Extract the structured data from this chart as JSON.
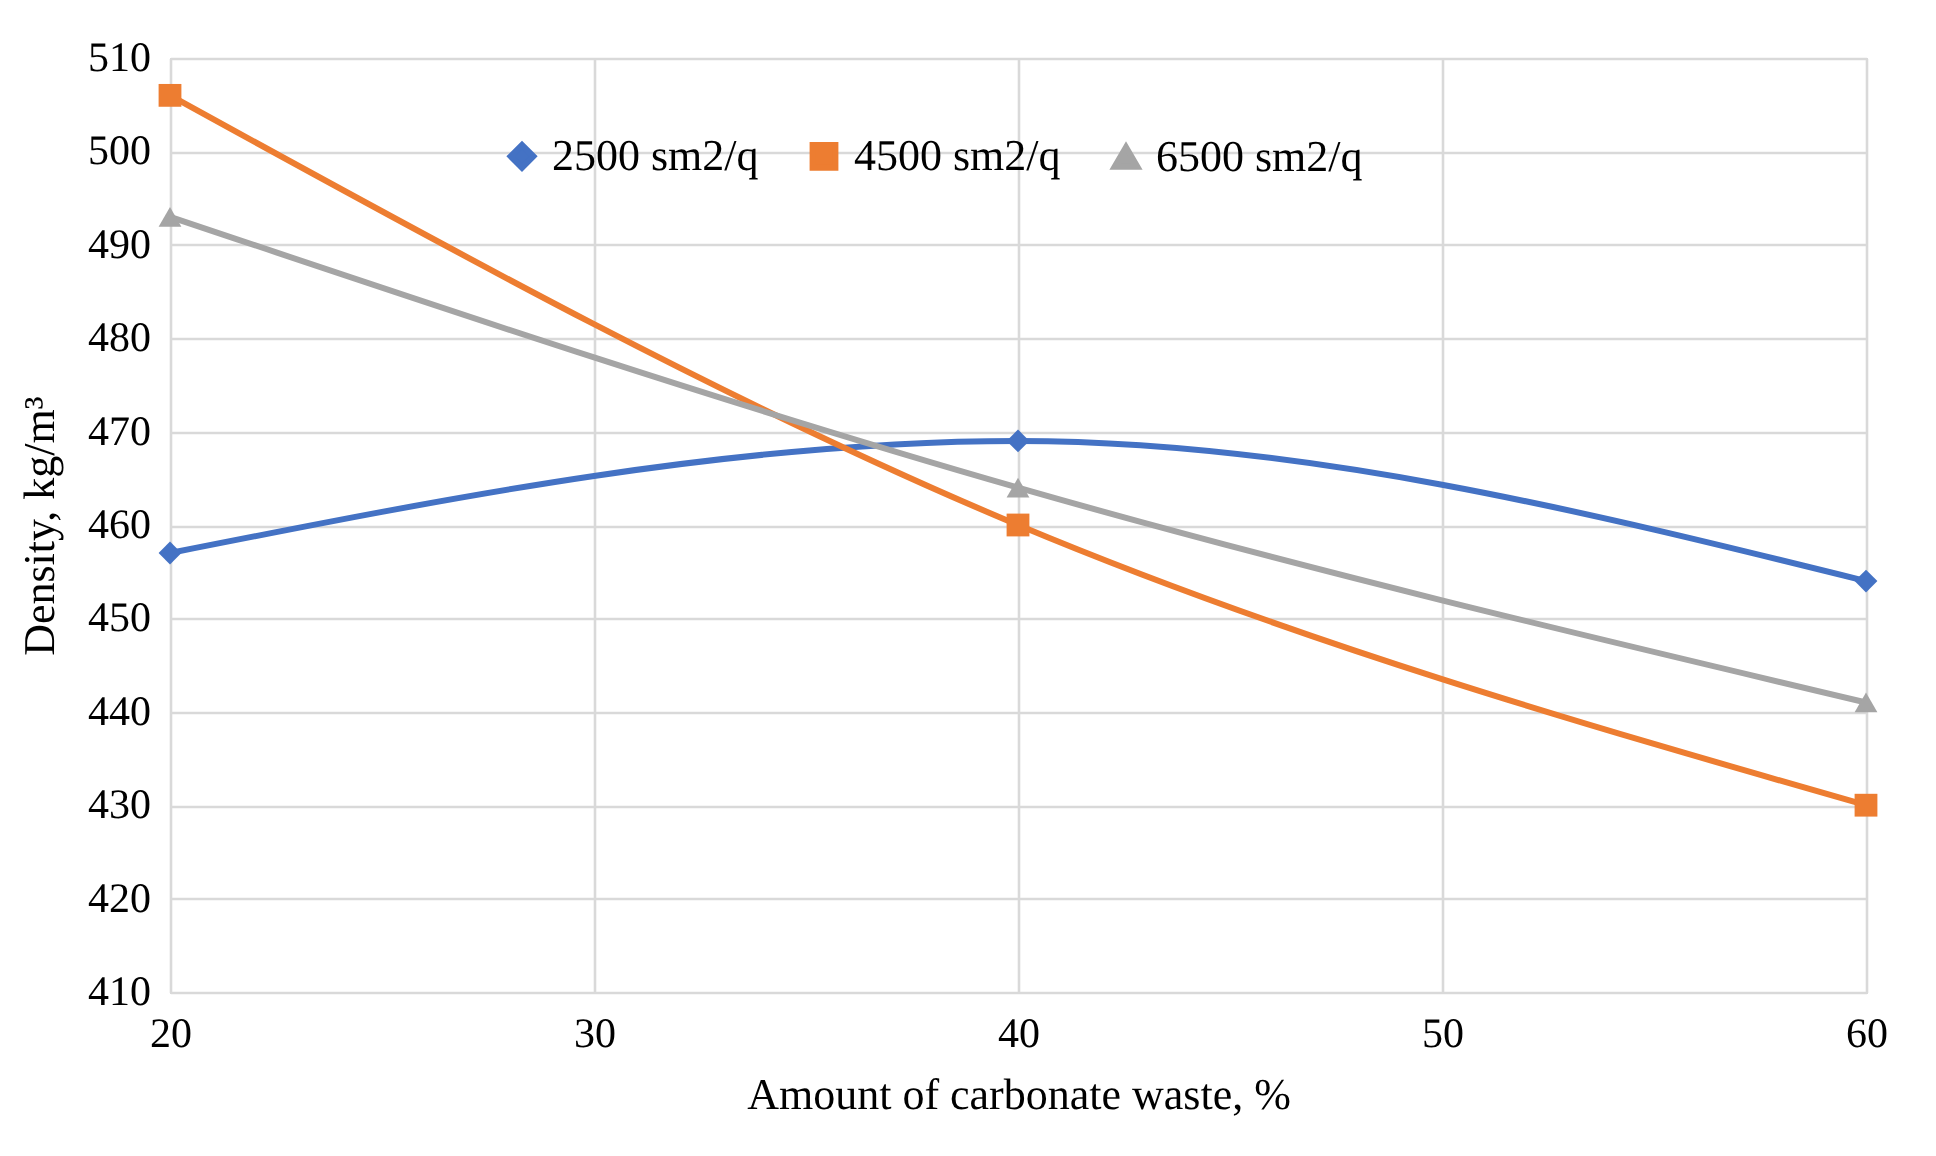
{
  "chart_data": {
    "type": "line",
    "xlabel": "Amount of carbonate waste, %",
    "ylabel": "Density, kg/m³",
    "x": [
      20,
      40,
      60
    ],
    "series": [
      {
        "name": "2500 sm2/q",
        "color": "#4472c4",
        "marker": "diamond",
        "values": [
          457,
          469,
          454
        ]
      },
      {
        "name": "4500 sm2/q",
        "color": "#ed7d31",
        "marker": "square",
        "values": [
          506,
          460,
          430
        ]
      },
      {
        "name": "6500 sm2/q",
        "color": "#a5a5a5",
        "marker": "triangle",
        "values": [
          493,
          464,
          441
        ]
      }
    ],
    "xlim": [
      20,
      60
    ],
    "xticks": [
      20,
      30,
      40,
      50,
      60
    ],
    "ylim": [
      410,
      510
    ],
    "yticks": [
      410,
      420,
      430,
      440,
      450,
      460,
      470,
      480,
      490,
      500,
      510
    ],
    "grid": true,
    "legend": "top",
    "line_style": "solid"
  }
}
